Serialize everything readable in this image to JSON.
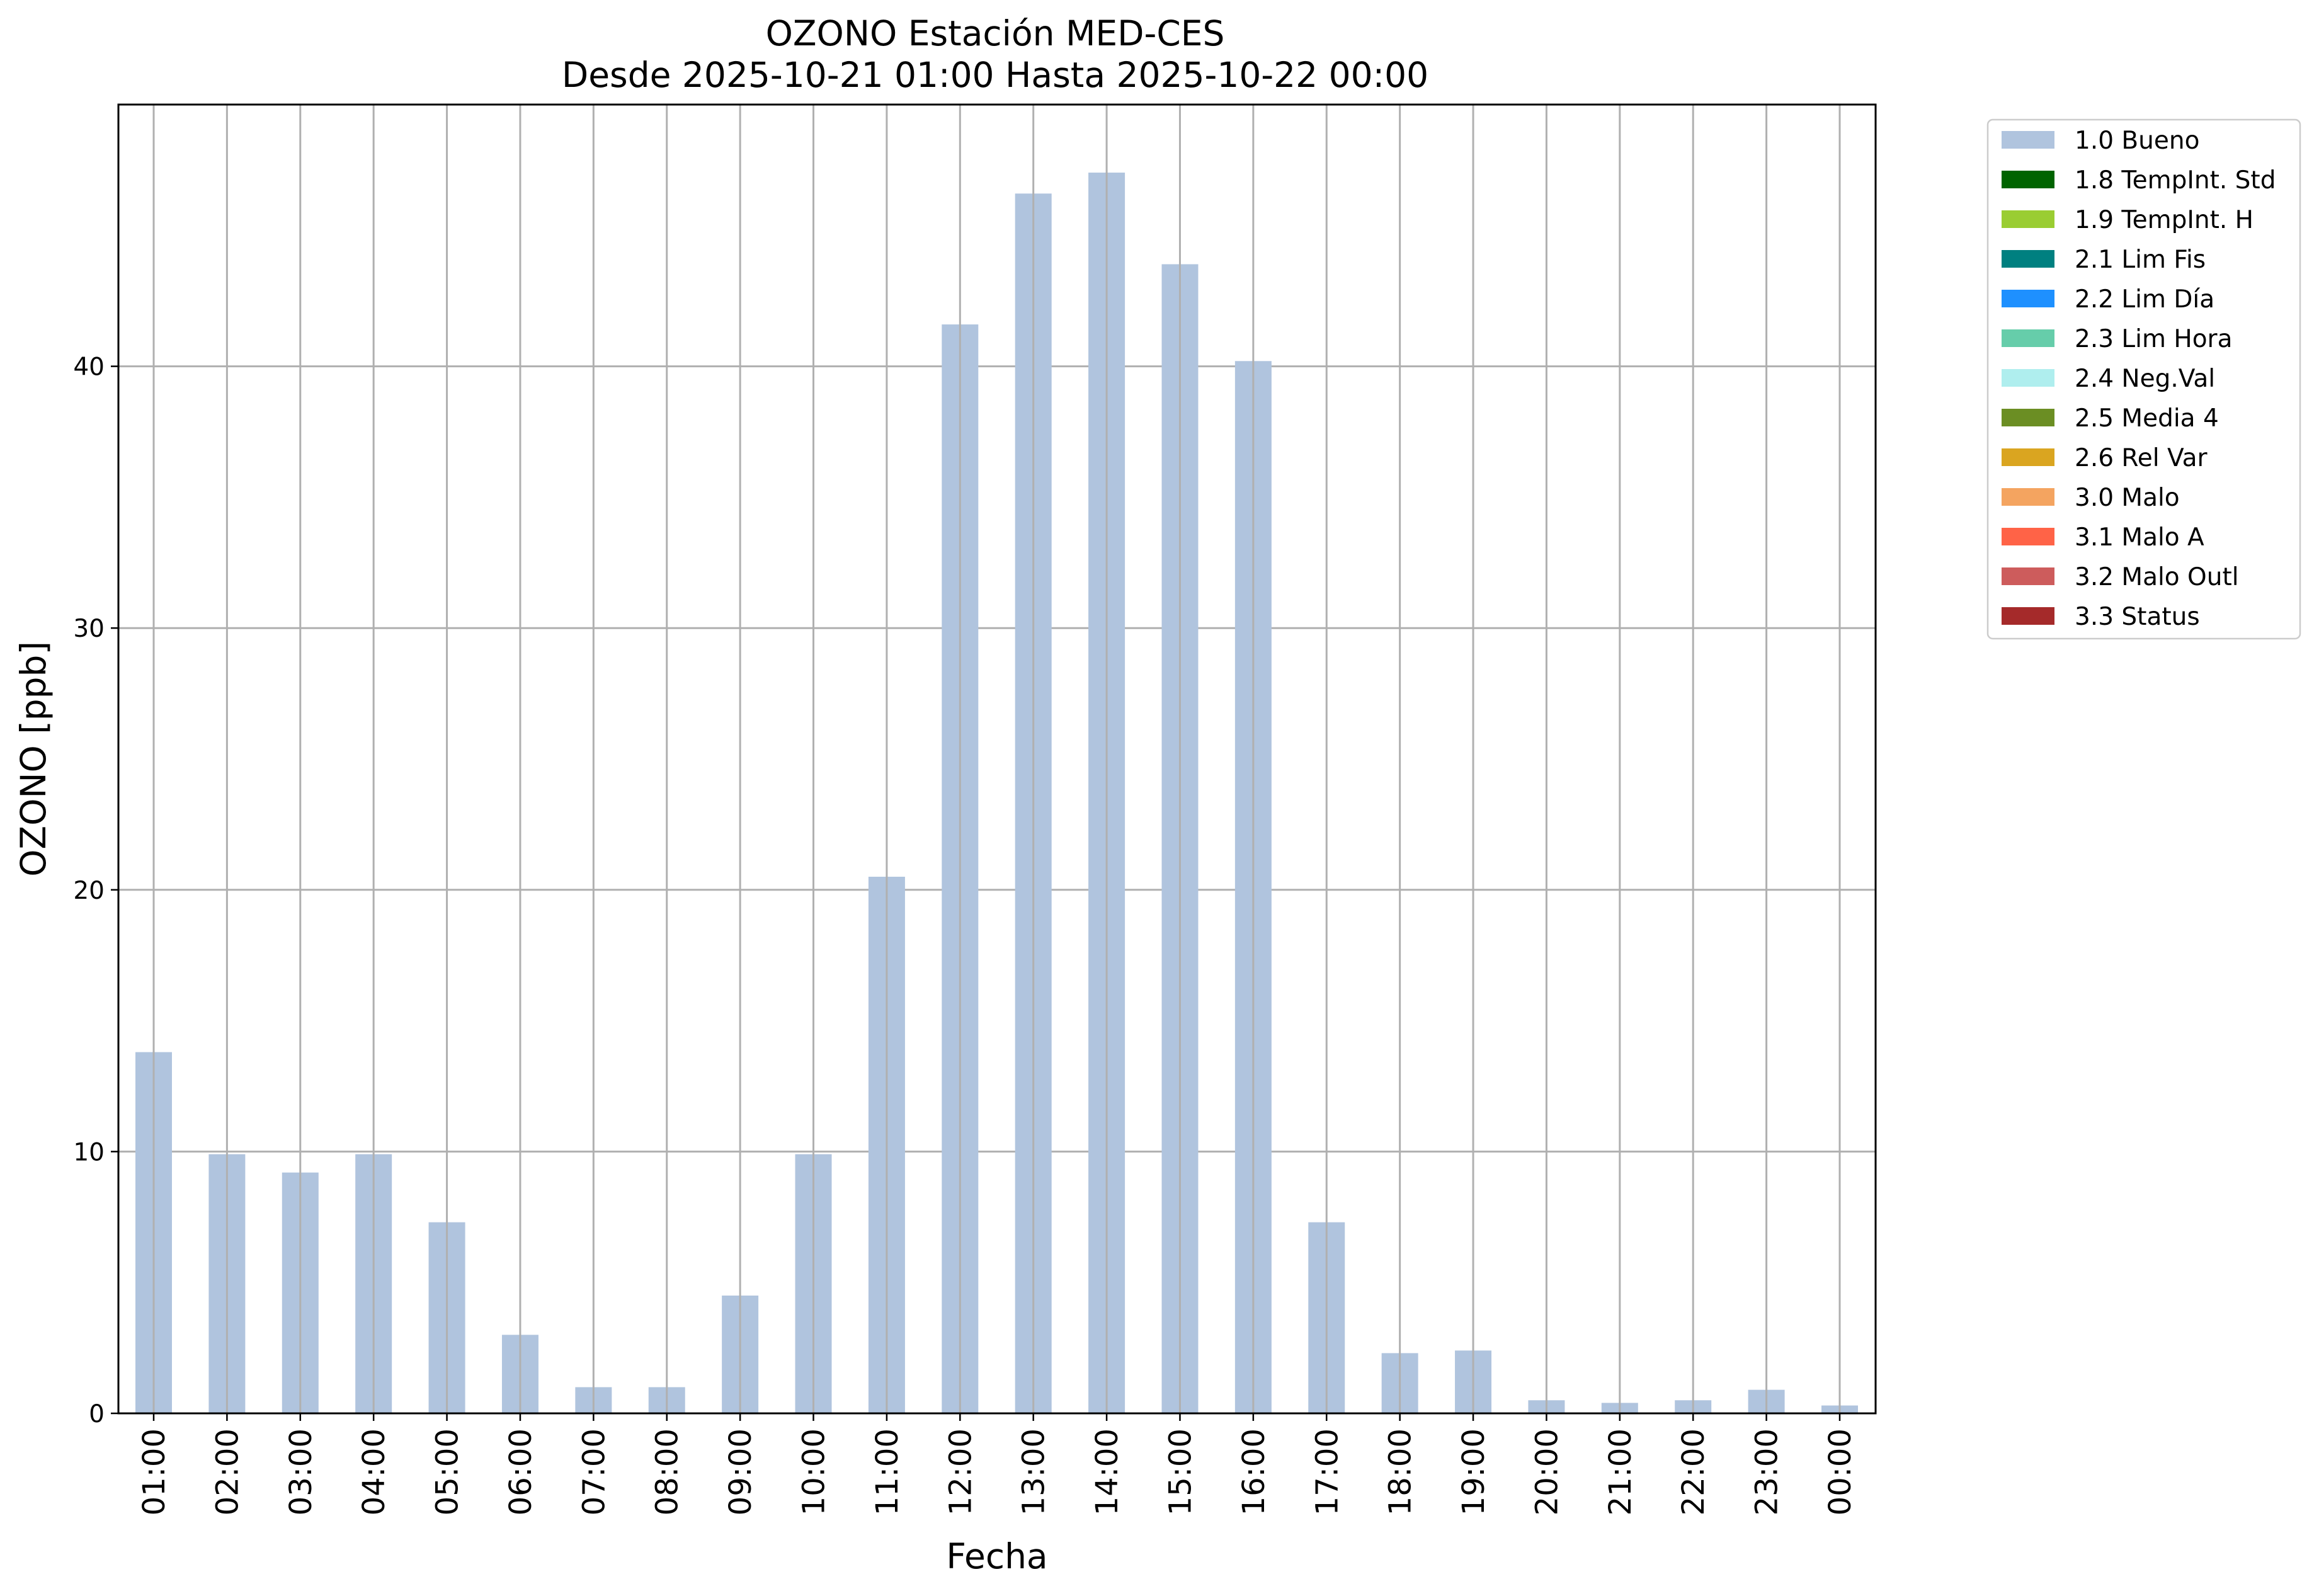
{
  "chart_data": {
    "type": "bar",
    "title": "OZONO Estación MED-CES",
    "subtitle": "Desde 2025-10-21 01:00 Hasta 2025-10-22 00:00",
    "xlabel": "Fecha",
    "ylabel": "OZONO [ppb]",
    "ylim": [
      0,
      50
    ],
    "yticks": [
      0,
      10,
      20,
      30,
      40
    ],
    "grid": true,
    "legend_position": "outside-top-right",
    "categories": [
      "01:00",
      "02:00",
      "03:00",
      "04:00",
      "05:00",
      "06:00",
      "07:00",
      "08:00",
      "09:00",
      "10:00",
      "11:00",
      "12:00",
      "13:00",
      "14:00",
      "15:00",
      "16:00",
      "17:00",
      "18:00",
      "19:00",
      "20:00",
      "21:00",
      "22:00",
      "23:00",
      "00:00"
    ],
    "series": [
      {
        "name": "1.0 Bueno",
        "color": "#b0c4de",
        "values": [
          13.8,
          9.9,
          9.2,
          9.9,
          7.3,
          3.0,
          1.0,
          1.0,
          4.5,
          9.9,
          20.5,
          41.6,
          46.6,
          47.4,
          43.9,
          40.2,
          7.3,
          2.3,
          2.4,
          0.5,
          0.4,
          0.5,
          0.9,
          0.3
        ]
      }
    ],
    "legend": [
      {
        "label": "1.0 Bueno",
        "color": "#b0c4de"
      },
      {
        "label": "1.8 TempInt. Std",
        "color": "#006400"
      },
      {
        "label": "1.9 TempInt. H",
        "color": "#9acd32"
      },
      {
        "label": "2.1 Lim Fis",
        "color": "#008080"
      },
      {
        "label": "2.2 Lim Día",
        "color": "#1e90ff"
      },
      {
        "label": "2.3 Lim Hora",
        "color": "#66cdaa"
      },
      {
        "label": "2.4 Neg.Val",
        "color": "#afeeee"
      },
      {
        "label": "2.5 Media 4",
        "color": "#6b8e23"
      },
      {
        "label": "2.6 Rel Var",
        "color": "#daa520"
      },
      {
        "label": "3.0 Malo",
        "color": "#f4a460"
      },
      {
        "label": "3.1 Malo A",
        "color": "#ff6347"
      },
      {
        "label": "3.2 Malo Outl",
        "color": "#cd5c5c"
      },
      {
        "label": "3.3 Status",
        "color": "#a52a2a"
      }
    ]
  }
}
